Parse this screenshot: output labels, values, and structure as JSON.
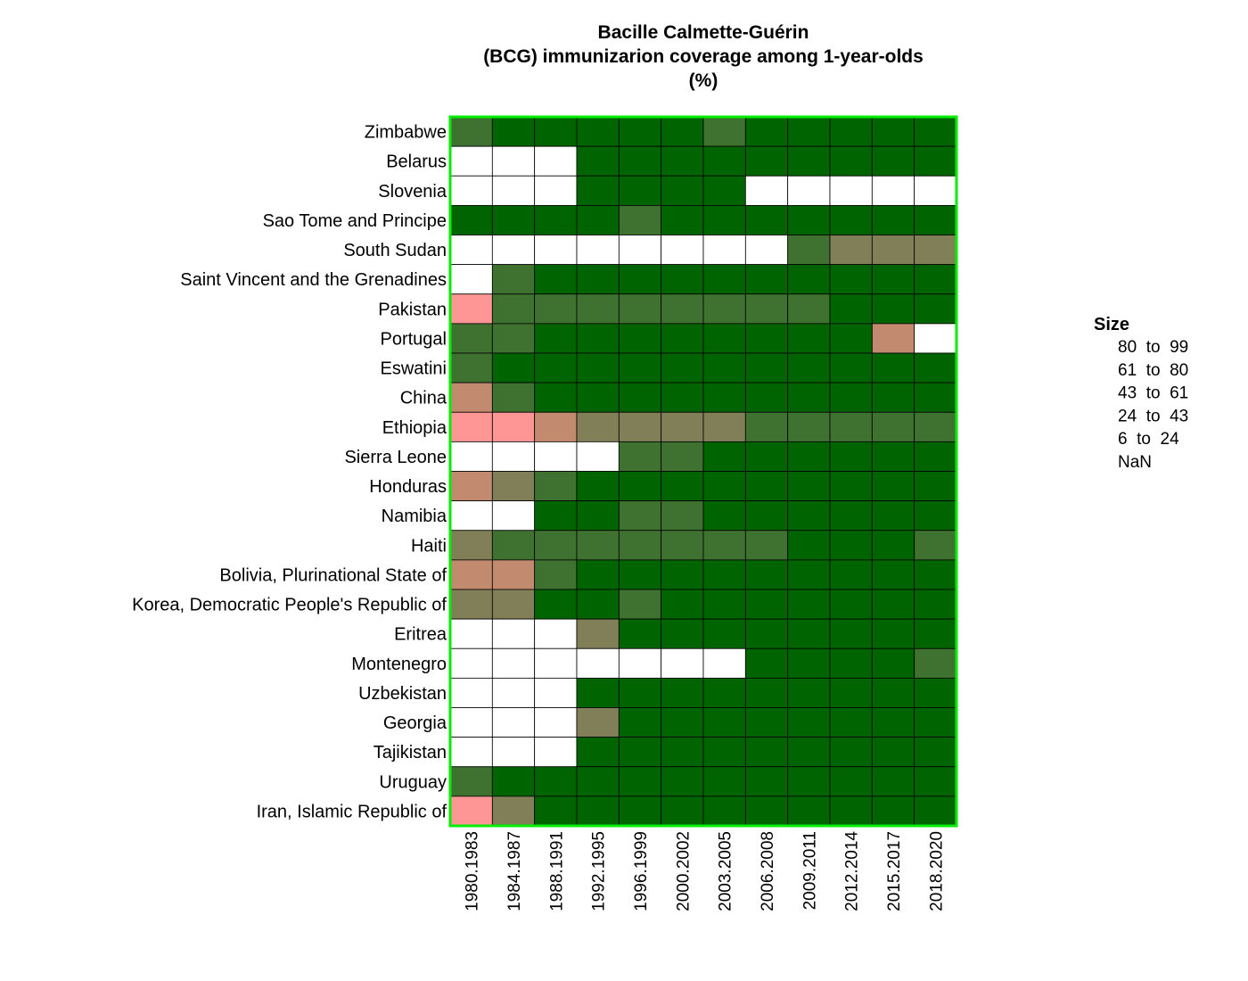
{
  "chart_data": {
    "type": "heatmap",
    "title_lines": [
      "Bacille Calmette-Guérin",
      "(BCG) immunizarion coverage among 1-year-olds",
      "(%)"
    ],
    "x": [
      "1980.1983",
      "1984.1987",
      "1988.1991",
      "1992.1995",
      "1996.1999",
      "2000.2002",
      "2003.2005",
      "2006.2008",
      "2009.2011",
      "2012.2014",
      "2015.2017",
      "2018.2020"
    ],
    "y": [
      "Zimbabwe",
      "Belarus",
      "Slovenia",
      "Sao Tome and Principe",
      "South Sudan",
      "Saint Vincent and the Grenadines",
      "Pakistan",
      "Portugal",
      "Eswatini",
      "China",
      "Ethiopia",
      "Sierra Leone",
      "Honduras",
      "Namibia",
      "Haiti",
      "Bolivia, Plurinational State of",
      "Korea, Democratic People's Republic of",
      "Eritrea",
      "Montenegro",
      "Uzbekistan",
      "Georgia",
      "Tajikistan",
      "Uruguay",
      "Iran, Islamic Republic of"
    ],
    "legend": {
      "title": "Size",
      "placement": "right",
      "bins": [
        {
          "label": "80  to  99",
          "color": "#006400"
        },
        {
          "label": "61  to  80",
          "color": "#3f7131"
        },
        {
          "label": "43  to  61",
          "color": "#807f58"
        },
        {
          "label": "24  to  43",
          "color": "#c28b70"
        },
        {
          "label": "6  to  24",
          "color": "#ff9696"
        },
        {
          "label": "NaN",
          "color": "#ffffff"
        }
      ]
    },
    "bin_index_grid": [
      [
        1,
        0,
        0,
        0,
        0,
        0,
        1,
        0,
        0,
        0,
        0,
        0
      ],
      [
        5,
        5,
        5,
        0,
        0,
        0,
        0,
        0,
        0,
        0,
        0,
        0
      ],
      [
        5,
        5,
        5,
        0,
        0,
        0,
        0,
        5,
        5,
        5,
        5,
        5
      ],
      [
        0,
        0,
        0,
        0,
        1,
        0,
        0,
        0,
        0,
        0,
        0,
        0
      ],
      [
        5,
        5,
        5,
        5,
        5,
        5,
        5,
        5,
        1,
        2,
        2,
        2
      ],
      [
        5,
        1,
        0,
        0,
        0,
        0,
        0,
        0,
        0,
        0,
        0,
        0
      ],
      [
        4,
        1,
        1,
        1,
        1,
        1,
        1,
        1,
        1,
        0,
        0,
        0
      ],
      [
        1,
        1,
        0,
        0,
        0,
        0,
        0,
        0,
        0,
        0,
        3,
        5
      ],
      [
        1,
        0,
        0,
        0,
        0,
        0,
        0,
        0,
        0,
        0,
        0,
        0
      ],
      [
        3,
        1,
        0,
        0,
        0,
        0,
        0,
        0,
        0,
        0,
        0,
        0
      ],
      [
        4,
        4,
        3,
        2,
        2,
        2,
        2,
        1,
        1,
        1,
        1,
        1
      ],
      [
        5,
        5,
        5,
        5,
        1,
        1,
        0,
        0,
        0,
        0,
        0,
        0
      ],
      [
        3,
        2,
        1,
        0,
        0,
        0,
        0,
        0,
        0,
        0,
        0,
        0
      ],
      [
        5,
        5,
        0,
        0,
        1,
        1,
        0,
        0,
        0,
        0,
        0,
        0
      ],
      [
        2,
        1,
        1,
        1,
        1,
        1,
        1,
        1,
        0,
        0,
        0,
        1
      ],
      [
        3,
        3,
        1,
        0,
        0,
        0,
        0,
        0,
        0,
        0,
        0,
        0
      ],
      [
        2,
        2,
        0,
        0,
        1,
        0,
        0,
        0,
        0,
        0,
        0,
        0
      ],
      [
        5,
        5,
        5,
        2,
        0,
        0,
        0,
        0,
        0,
        0,
        0,
        0
      ],
      [
        5,
        5,
        5,
        5,
        5,
        5,
        5,
        0,
        0,
        0,
        0,
        1
      ],
      [
        5,
        5,
        5,
        0,
        0,
        0,
        0,
        0,
        0,
        0,
        0,
        0
      ],
      [
        5,
        5,
        5,
        2,
        0,
        0,
        0,
        0,
        0,
        0,
        0,
        0
      ],
      [
        5,
        5,
        5,
        0,
        0,
        0,
        0,
        0,
        0,
        0,
        0,
        0
      ],
      [
        1,
        0,
        0,
        0,
        0,
        0,
        0,
        0,
        0,
        0,
        0,
        0
      ],
      [
        4,
        2,
        0,
        0,
        0,
        0,
        0,
        0,
        0,
        0,
        0,
        0
      ]
    ],
    "grid": false,
    "frame_color": "#00ee00"
  }
}
